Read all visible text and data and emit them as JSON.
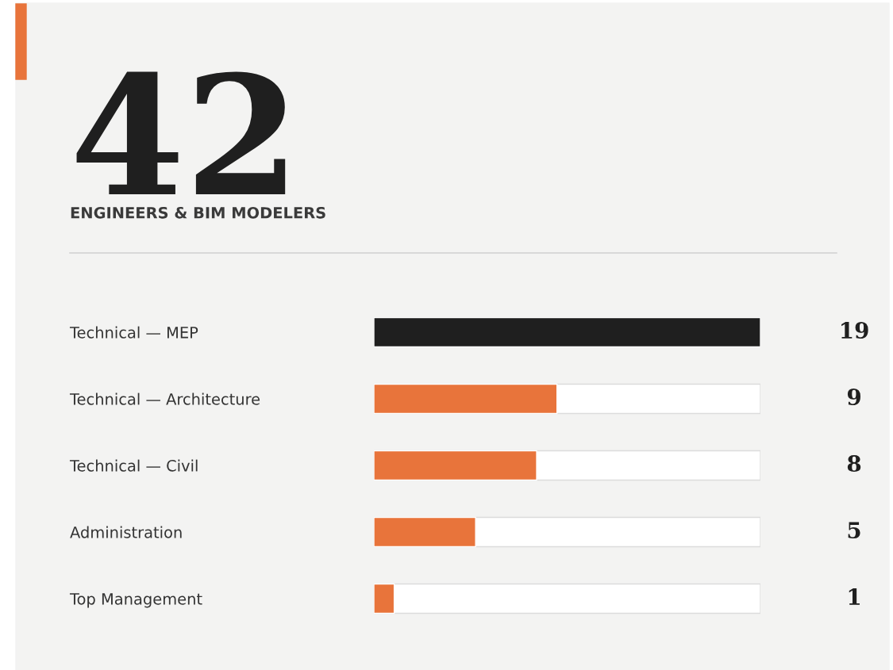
{
  "chart_data": {
    "type": "bar",
    "orientation": "horizontal",
    "title": "42",
    "subtitle": "ENGINEERS & BIM MODELERS",
    "categories": [
      "Technical — MEP",
      "Technical — Architecture",
      "Technical — Civil",
      "Administration",
      "Top Management"
    ],
    "values": [
      19,
      9,
      8,
      5,
      1
    ],
    "colors": [
      "#1f1f1f",
      "#e8743b",
      "#e8743b",
      "#e8743b",
      "#e8743b"
    ],
    "xlim": [
      0,
      19
    ],
    "tick_labels": "y",
    "data_labels": true
  }
}
